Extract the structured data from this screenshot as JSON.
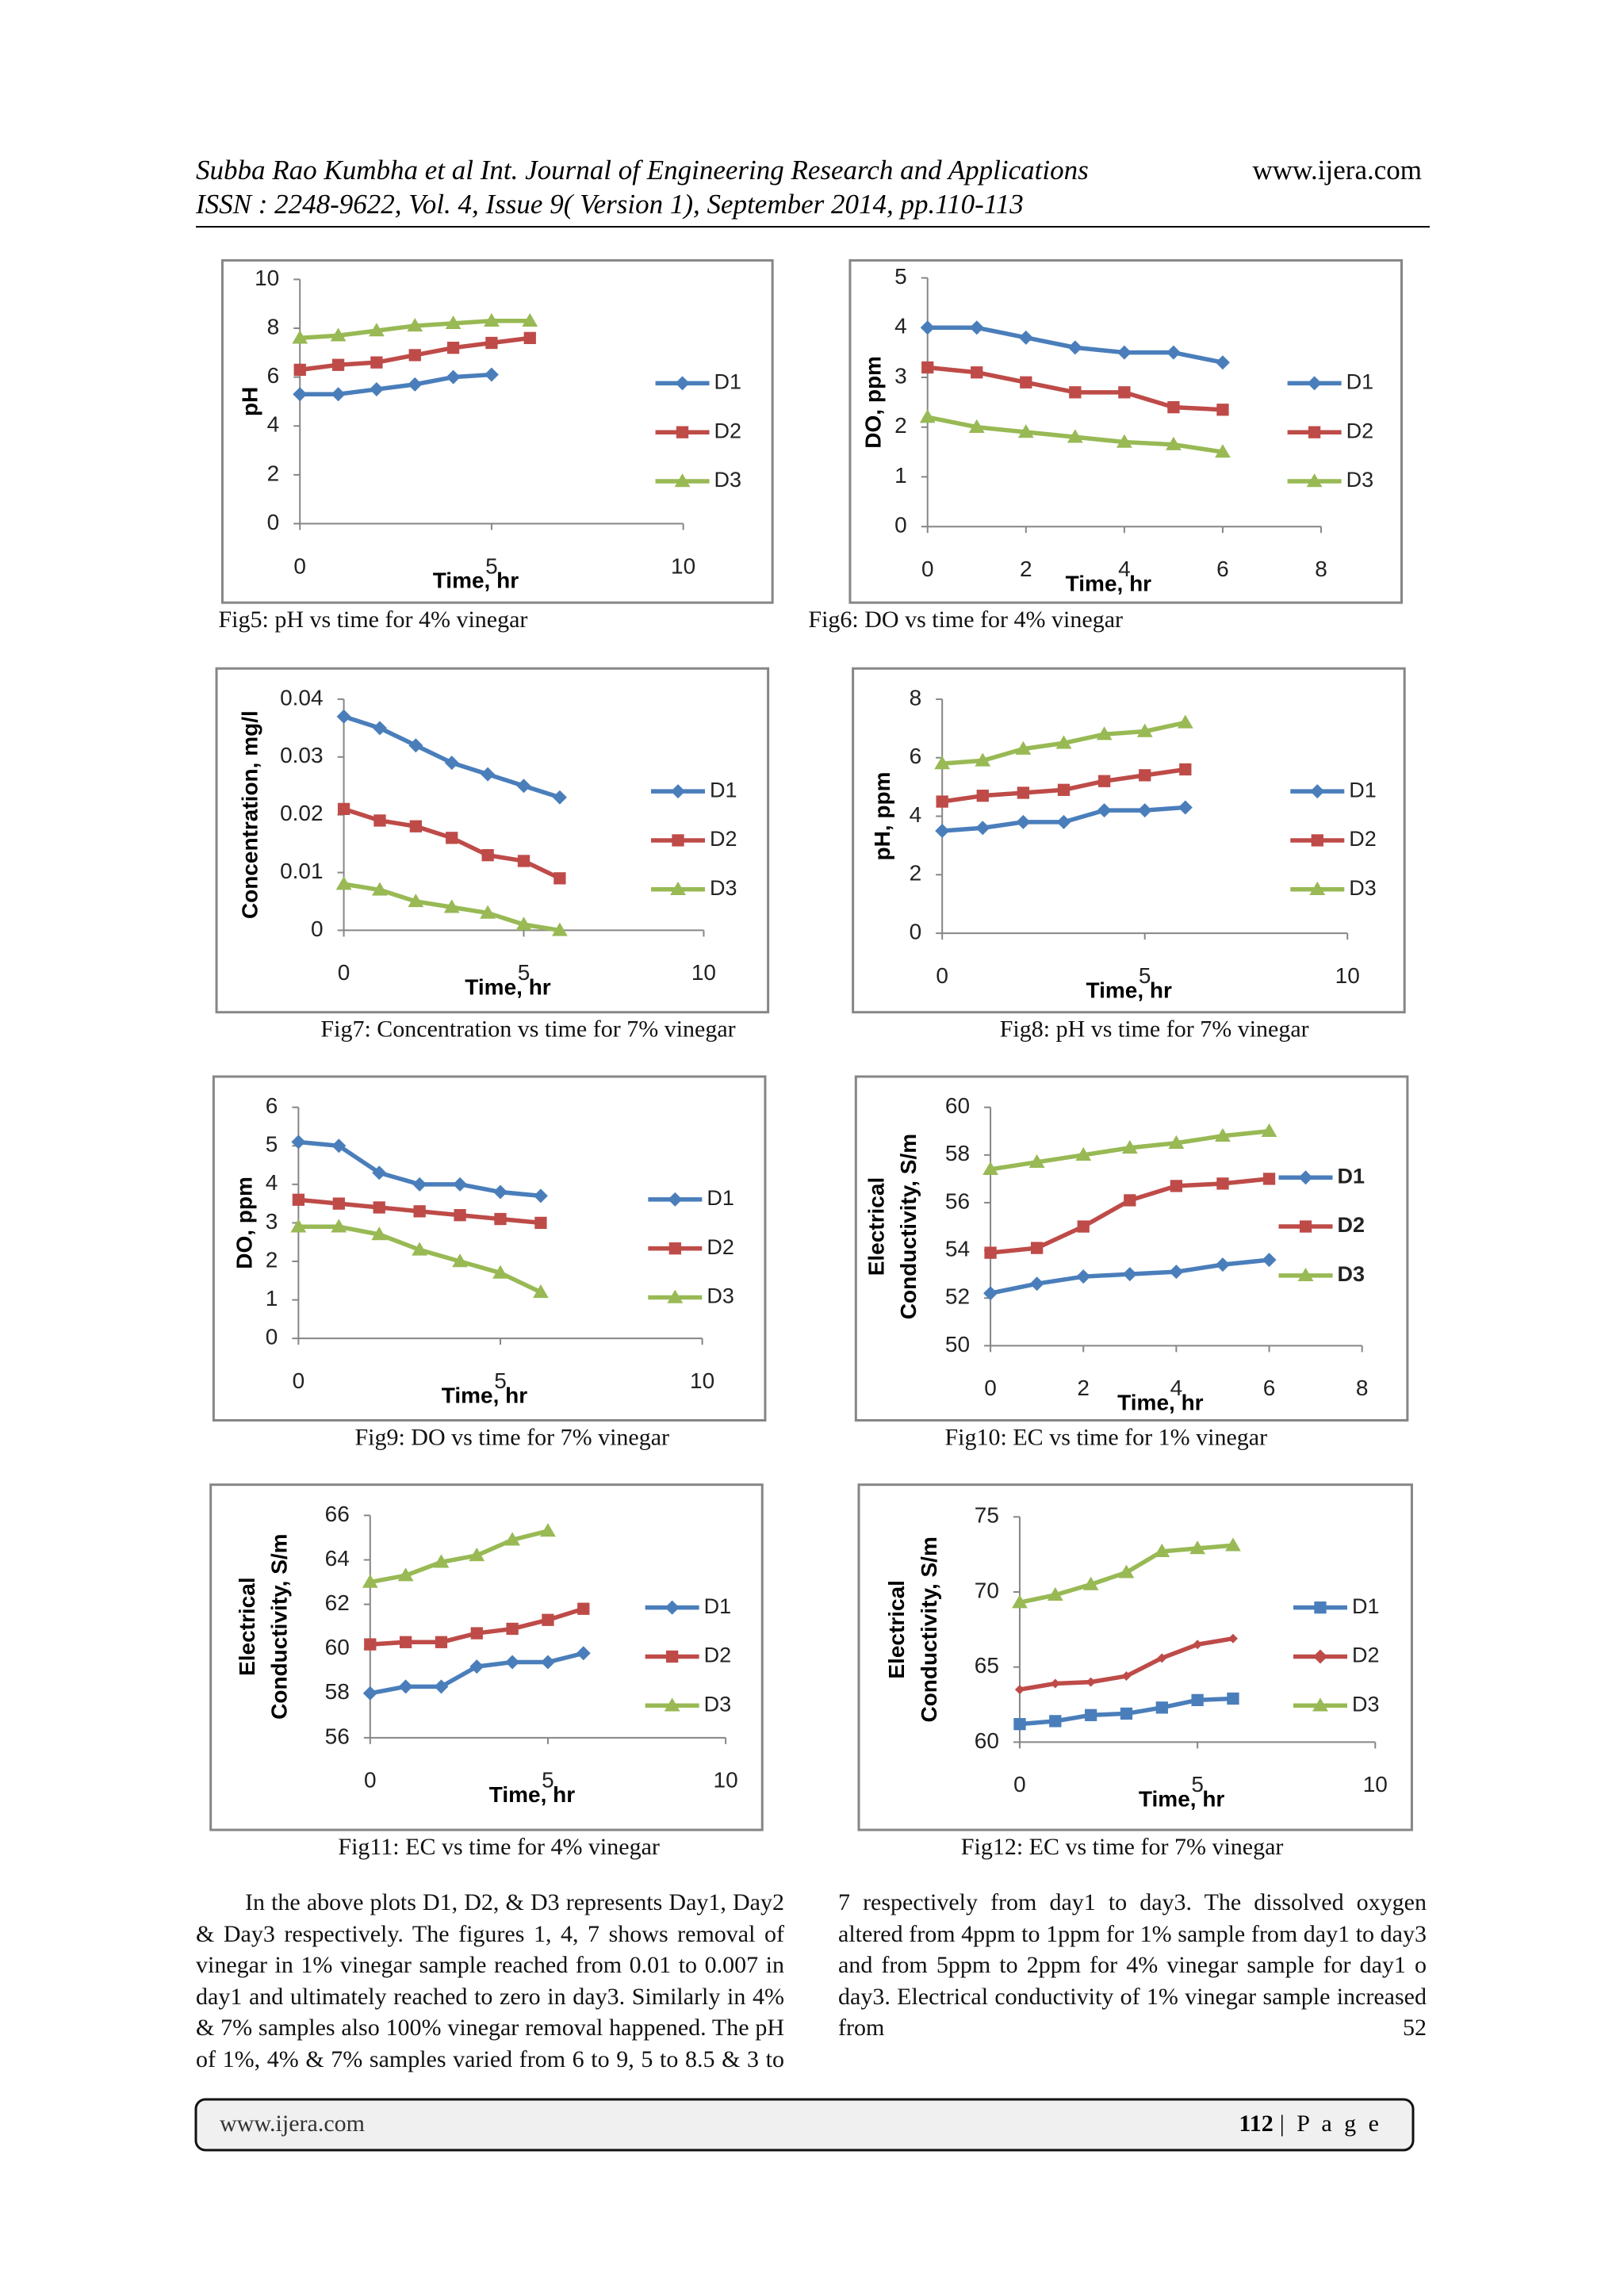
{
  "header": {
    "journal": "Subba Rao Kumbha et al Int. Journal of Engineering Research and Applications",
    "website": "www.ijera.com",
    "issue": "ISSN : 2248-9622, Vol. 4, Issue 9( Version 1), September 2014, pp.110-113"
  },
  "chart_data": [
    {
      "type": "line",
      "caption": "Fig5: pH vs time for 4% vinegar",
      "xlabel": "Time, hr",
      "ylabel": [
        "pH"
      ],
      "x": [
        0,
        1,
        2,
        3,
        4,
        5,
        6
      ],
      "xlim": [
        0,
        10
      ],
      "xticks": [
        0,
        5,
        10
      ],
      "ylim": [
        0,
        10
      ],
      "yticks": [
        0,
        2,
        4,
        6,
        8,
        10
      ],
      "series": [
        {
          "name": "D1",
          "color": "#4a7ebb",
          "marker": "diamond",
          "values": [
            5.3,
            5.3,
            5.5,
            5.7,
            6.0,
            6.1,
            null
          ]
        },
        {
          "name": "D2",
          "color": "#be4b48",
          "marker": "square",
          "values": [
            6.3,
            6.5,
            6.6,
            6.9,
            7.2,
            7.4,
            7.6
          ]
        },
        {
          "name": "D3",
          "color": "#98b954",
          "marker": "triangle",
          "values": [
            7.6,
            7.7,
            7.9,
            8.1,
            8.2,
            8.3,
            8.3
          ]
        }
      ]
    },
    {
      "type": "line",
      "caption": "Fig6: DO vs time for 4% vinegar",
      "xlabel": "Time, hr",
      "ylabel": [
        "DO, ppm"
      ],
      "x": [
        0,
        1,
        2,
        3,
        4,
        5,
        6
      ],
      "xlim": [
        0,
        8
      ],
      "xticks": [
        0,
        2,
        4,
        6,
        8
      ],
      "ylim": [
        0,
        5
      ],
      "yticks": [
        0,
        1,
        2,
        3,
        4,
        5
      ],
      "series": [
        {
          "name": "D1",
          "color": "#4a7ebb",
          "marker": "diamond",
          "values": [
            4.0,
            4.0,
            3.8,
            3.6,
            3.5,
            3.5,
            3.3
          ]
        },
        {
          "name": "D2",
          "color": "#be4b48",
          "marker": "square",
          "values": [
            3.2,
            3.1,
            2.9,
            2.7,
            2.7,
            2.4,
            2.35
          ]
        },
        {
          "name": "D3",
          "color": "#98b954",
          "marker": "triangle",
          "values": [
            2.2,
            2.0,
            1.9,
            1.8,
            1.7,
            1.65,
            1.5
          ]
        }
      ]
    },
    {
      "type": "line",
      "caption": "Fig7: Concentration vs time for 7% vinegar",
      "xlabel": "Time, hr",
      "ylabel": [
        "Concentration, mg/l"
      ],
      "x": [
        0,
        1,
        2,
        3,
        4,
        5,
        6
      ],
      "xlim": [
        0,
        10
      ],
      "xticks": [
        0,
        5,
        10
      ],
      "ylim": [
        0,
        0.04
      ],
      "yticks": [
        0,
        0.01,
        0.02,
        0.03,
        0.04
      ],
      "series": [
        {
          "name": "D1",
          "color": "#4a7ebb",
          "marker": "diamond",
          "values": [
            0.037,
            0.035,
            0.032,
            0.029,
            0.027,
            0.025,
            0.023
          ]
        },
        {
          "name": "D2",
          "color": "#be4b48",
          "marker": "square",
          "values": [
            0.021,
            0.019,
            0.018,
            0.016,
            0.013,
            0.012,
            0.009
          ]
        },
        {
          "name": "D3",
          "color": "#98b954",
          "marker": "triangle",
          "values": [
            0.008,
            0.007,
            0.005,
            0.004,
            0.003,
            0.001,
            0
          ]
        }
      ]
    },
    {
      "type": "line",
      "caption": "Fig8: pH vs time for 7% vinegar",
      "xlabel": "Time, hr",
      "ylabel": [
        "pH, ppm"
      ],
      "x": [
        0,
        1,
        2,
        3,
        4,
        5,
        6
      ],
      "xlim": [
        0,
        10
      ],
      "xticks": [
        0,
        5,
        10
      ],
      "ylim": [
        0,
        8
      ],
      "yticks": [
        0,
        2,
        4,
        6,
        8
      ],
      "series": [
        {
          "name": "D1",
          "color": "#4a7ebb",
          "marker": "diamond",
          "values": [
            3.5,
            3.6,
            3.8,
            3.8,
            4.2,
            4.2,
            4.3
          ]
        },
        {
          "name": "D2",
          "color": "#be4b48",
          "marker": "square",
          "values": [
            4.5,
            4.7,
            4.8,
            4.9,
            5.2,
            5.4,
            5.6
          ]
        },
        {
          "name": "D3",
          "color": "#98b954",
          "marker": "triangle",
          "values": [
            5.8,
            5.9,
            6.3,
            6.5,
            6.8,
            6.9,
            7.2
          ]
        }
      ]
    },
    {
      "type": "line",
      "caption": "Fig9: DO vs time for 7% vinegar",
      "xlabel": "Time, hr",
      "ylabel": [
        "DO, ppm"
      ],
      "x": [
        0,
        1,
        2,
        3,
        4,
        5,
        6
      ],
      "xlim": [
        0,
        10
      ],
      "xticks": [
        0,
        5,
        10
      ],
      "ylim": [
        0,
        6
      ],
      "yticks": [
        0,
        1,
        2,
        3,
        4,
        5,
        6
      ],
      "series": [
        {
          "name": "D1",
          "color": "#4a7ebb",
          "marker": "diamond",
          "values": [
            5.1,
            5.0,
            4.3,
            4.0,
            4.0,
            3.8,
            3.7
          ]
        },
        {
          "name": "D2",
          "color": "#be4b48",
          "marker": "square",
          "values": [
            3.6,
            3.5,
            3.4,
            3.3,
            3.2,
            3.1,
            3.0
          ]
        },
        {
          "name": "D3",
          "color": "#98b954",
          "marker": "triangle",
          "values": [
            2.9,
            2.9,
            2.7,
            2.3,
            2.0,
            1.7,
            1.2
          ]
        }
      ]
    },
    {
      "type": "line",
      "caption": "Fig10: EC vs time for 1% vinegar",
      "xlabel": "Time, hr",
      "ylabel": [
        "Electrical",
        "Conductivity, S/m"
      ],
      "x": [
        0,
        1,
        2,
        3,
        4,
        5,
        6
      ],
      "xlim": [
        0,
        8
      ],
      "xticks": [
        0,
        2,
        4,
        6,
        8
      ],
      "ylim": [
        50,
        60
      ],
      "yticks": [
        50,
        52,
        54,
        56,
        58,
        60
      ],
      "legend_bold": true,
      "series": [
        {
          "name": "D1",
          "color": "#4a7ebb",
          "marker": "diamond",
          "values": [
            52.2,
            52.6,
            52.9,
            53.0,
            53.1,
            53.4,
            53.6
          ]
        },
        {
          "name": "D2",
          "color": "#be4b48",
          "marker": "square",
          "values": [
            53.9,
            54.1,
            55.0,
            56.1,
            56.7,
            56.8,
            57.0
          ]
        },
        {
          "name": "D3",
          "color": "#98b954",
          "marker": "triangle",
          "values": [
            57.4,
            57.7,
            58.0,
            58.3,
            58.5,
            58.8,
            59.0
          ]
        }
      ]
    },
    {
      "type": "line",
      "caption": "Fig11: EC vs time for 4% vinegar",
      "xlabel": "Time, hr",
      "ylabel": [
        "Electrical",
        "Conductivity, S/m"
      ],
      "x": [
        0,
        1,
        2,
        3,
        4,
        5,
        6
      ],
      "xlim": [
        0,
        10
      ],
      "xticks": [
        0,
        5,
        10
      ],
      "ylim": [
        56,
        66
      ],
      "yticks": [
        56,
        58,
        60,
        62,
        64,
        66
      ],
      "series": [
        {
          "name": "D1",
          "color": "#4a7ebb",
          "marker": "diamond",
          "values": [
            58.0,
            58.3,
            58.3,
            59.2,
            59.4,
            59.4,
            59.8
          ]
        },
        {
          "name": "D2",
          "color": "#be4b48",
          "marker": "square",
          "values": [
            60.2,
            60.3,
            60.3,
            60.7,
            60.9,
            61.3,
            61.8
          ]
        },
        {
          "name": "D3",
          "color": "#98b954",
          "marker": "triangle",
          "values": [
            63.0,
            63.3,
            63.9,
            64.2,
            64.9,
            65.3,
            null
          ]
        }
      ]
    },
    {
      "type": "line",
      "caption": "Fig12: EC vs time for 7% vinegar",
      "xlabel": "Time, hr",
      "ylabel": [
        "Electrical",
        "Conductivity, S/m"
      ],
      "x": [
        0,
        1,
        2,
        3,
        4,
        5,
        6
      ],
      "xlim": [
        0,
        10
      ],
      "xticks": [
        0,
        5,
        10
      ],
      "ylim": [
        60,
        75
      ],
      "yticks": [
        60,
        65,
        70,
        75
      ],
      "series": [
        {
          "name": "D1",
          "color": "#4a7ebb",
          "marker": "square",
          "values": [
            61.2,
            61.4,
            61.8,
            61.9,
            62.3,
            62.8,
            62.9
          ]
        },
        {
          "name": "D2",
          "color": "#be4b48",
          "marker": "diamond",
          "values": [
            63.5,
            63.9,
            64.0,
            64.4,
            65.6,
            66.5,
            66.9
          ]
        },
        {
          "name": "D3",
          "color": "#98b954",
          "marker": "triangle",
          "values": [
            69.3,
            69.8,
            70.5,
            71.3,
            72.7,
            72.9,
            73.1
          ]
        }
      ]
    }
  ],
  "body": "In the above plots D1, D2, & D3 represents Day1, Day2 & Day3 respectively. The figures 1, 4, 7 shows removal of vinegar in 1% vinegar sample reached from 0.01 to 0.007 in day1 and ultimately reached to zero in day3. Similarly in 4% & 7% samples also 100% vinegar removal happened. The pH of 1%, 4% & 7% samples varied from 6 to 9, 5 to 8.5 & 3 to 7 respectively from day1 to day3. The dissolved oxygen altered from 4ppm to 1ppm for 1% sample from day1 to day3 and from 5ppm to 2ppm for 4% vinegar sample for day1 o day3. Electrical conductivity of 1% vinegar sample increased from 52",
  "footer": {
    "website": "www.ijera.com",
    "page_number": "112",
    "page_label": "| P a g e"
  }
}
